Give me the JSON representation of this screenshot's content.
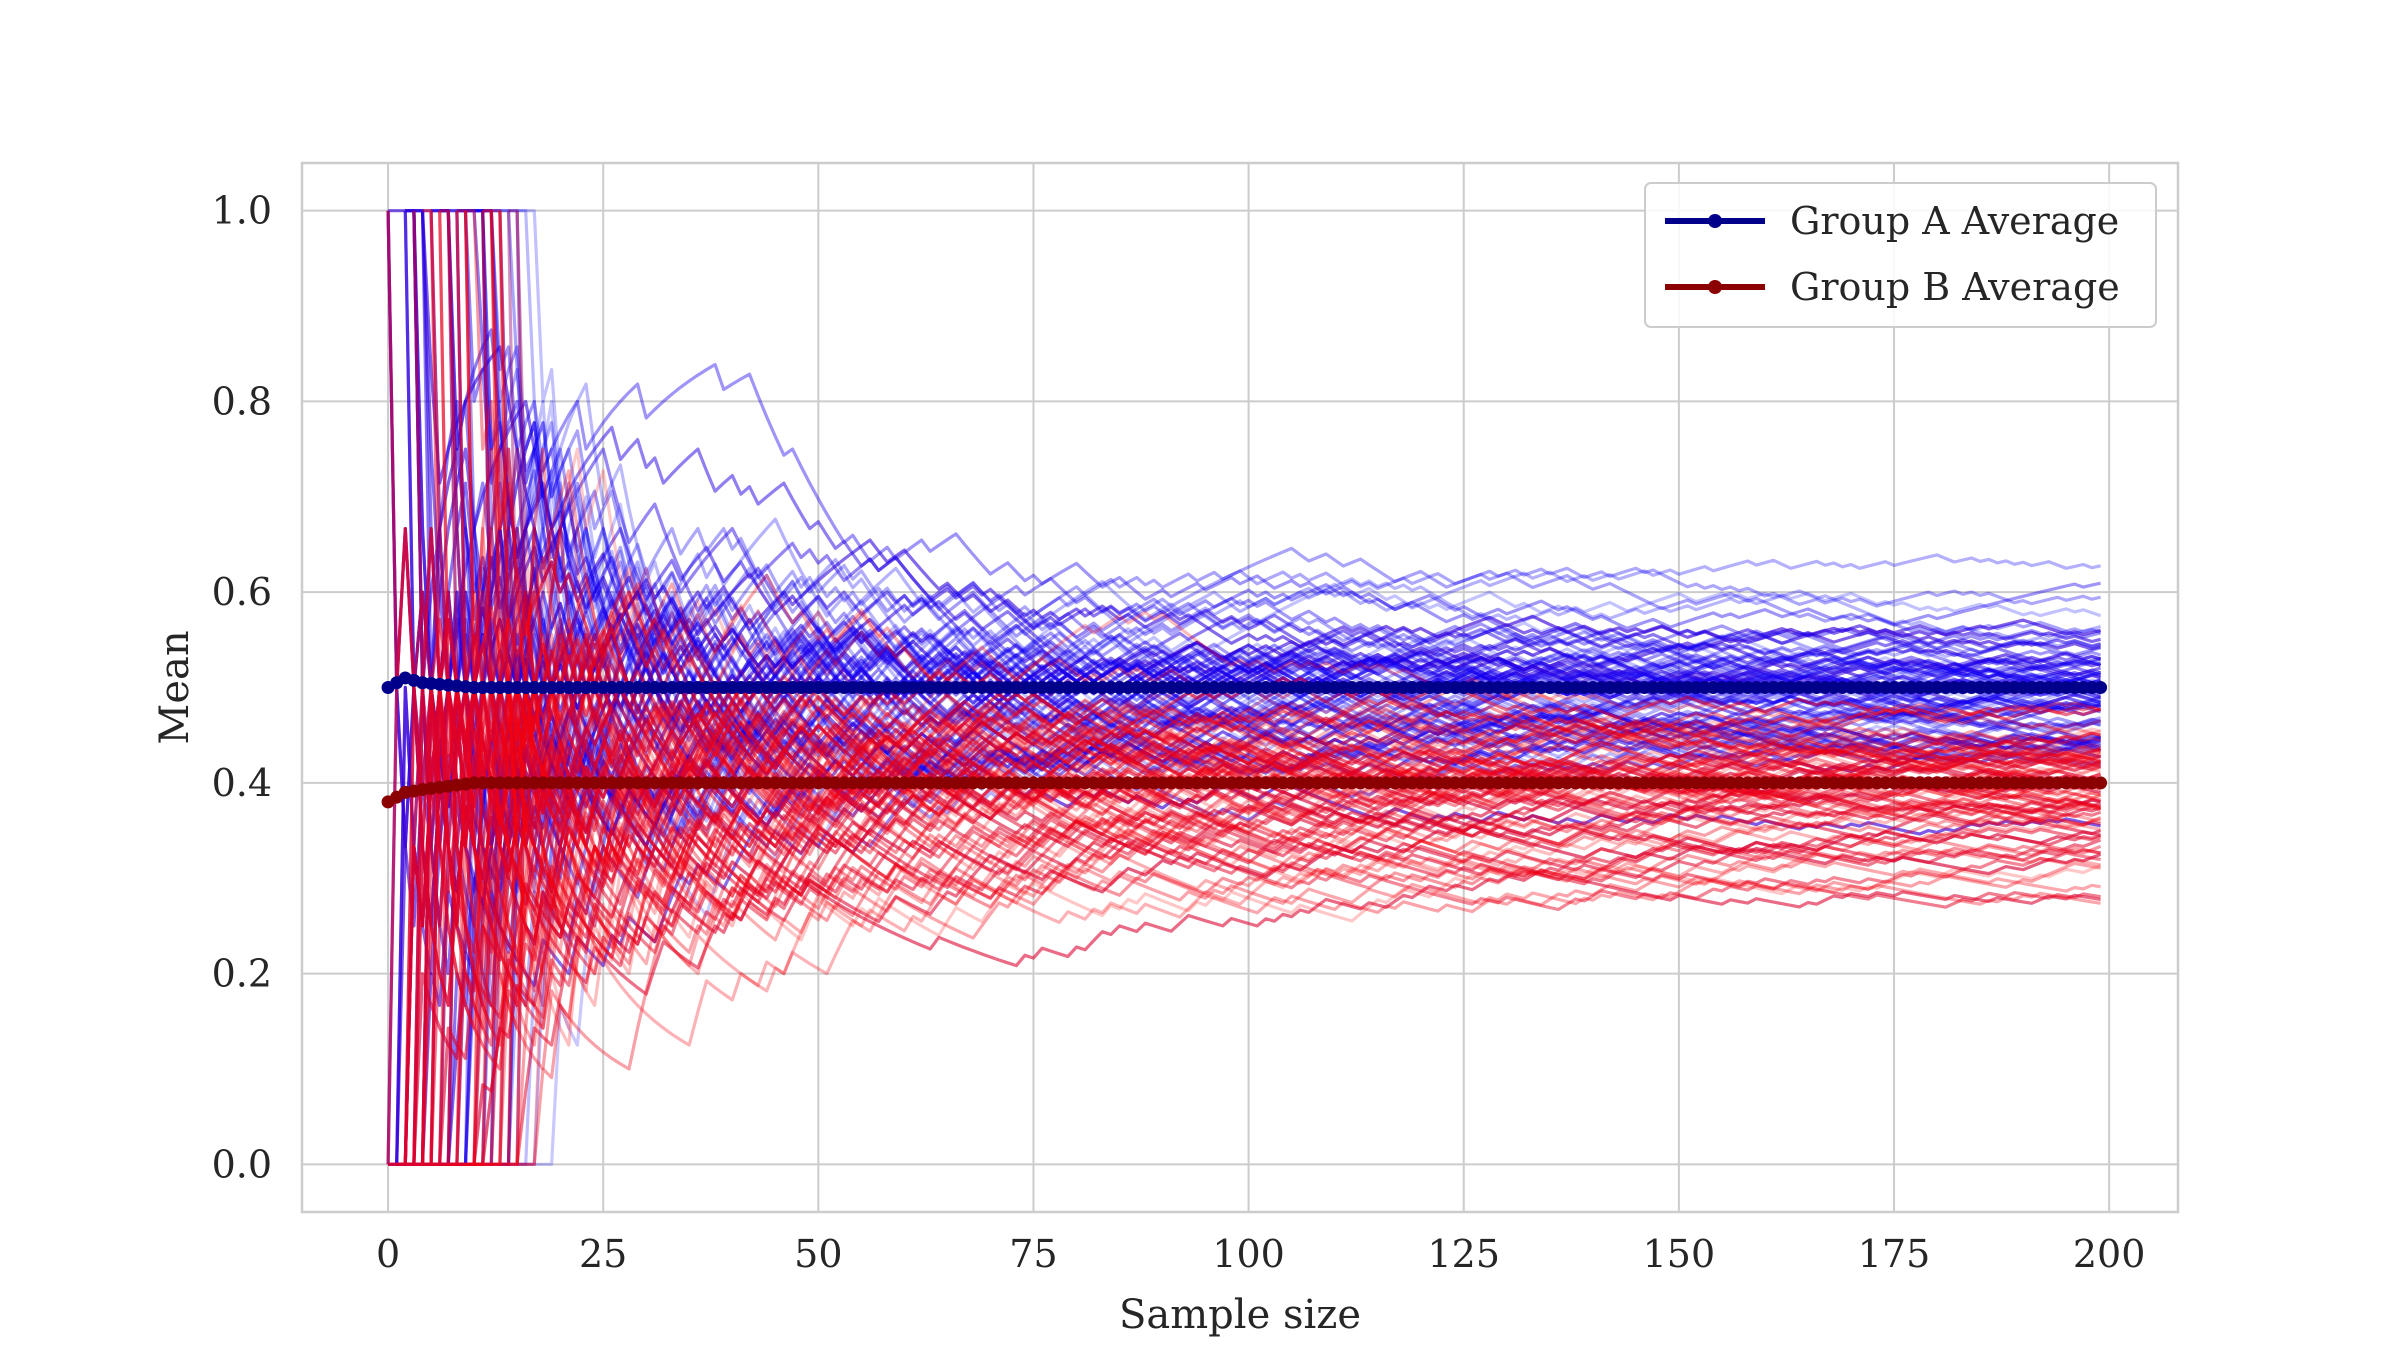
{
  "chart_data": {
    "type": "line",
    "title": "",
    "xlabel": "Sample size",
    "ylabel": "Mean",
    "xlim": [
      -10,
      208
    ],
    "ylim": [
      -0.05,
      1.05
    ],
    "xticks": [
      0,
      25,
      50,
      75,
      100,
      125,
      150,
      175,
      200
    ],
    "yticks": [
      0.0,
      0.2,
      0.4,
      0.6,
      0.8,
      1.0
    ],
    "xtick_labels": [
      "0",
      "25",
      "50",
      "75",
      "100",
      "125",
      "150",
      "175",
      "200"
    ],
    "ytick_labels": [
      "0.0",
      "0.2",
      "0.4",
      "0.6",
      "0.8",
      "1.0"
    ],
    "grid": true,
    "legend_position": "top-right",
    "colors": {
      "group_a_runs": "#0000ff",
      "group_b_runs": "#ff0000",
      "group_a_average": "#00008b",
      "group_b_average": "#8b0000",
      "grid": "#cccccc",
      "frame": "#cccccc"
    },
    "simulation_groups": [
      {
        "group": "A",
        "true_mean": 0.5,
        "runs": 80,
        "final_spread": [
          0.42,
          0.61
        ]
      },
      {
        "group": "B",
        "true_mean": 0.4,
        "runs": 80,
        "final_spread": [
          0.29,
          0.45
        ]
      }
    ],
    "series": [
      {
        "name": "Group A Average",
        "x": [
          0,
          2,
          4,
          10,
          25,
          50,
          75,
          100,
          125,
          150,
          175,
          199
        ],
        "values": [
          0.5,
          0.51,
          0.505,
          0.5,
          0.5,
          0.5,
          0.5,
          0.5,
          0.5,
          0.5,
          0.5,
          0.5
        ]
      },
      {
        "name": "Group B Average",
        "x": [
          0,
          2,
          4,
          10,
          25,
          50,
          75,
          100,
          125,
          150,
          175,
          199
        ],
        "values": [
          0.38,
          0.39,
          0.393,
          0.4,
          0.4,
          0.4,
          0.4,
          0.4,
          0.4,
          0.4,
          0.4,
          0.4
        ]
      }
    ]
  }
}
